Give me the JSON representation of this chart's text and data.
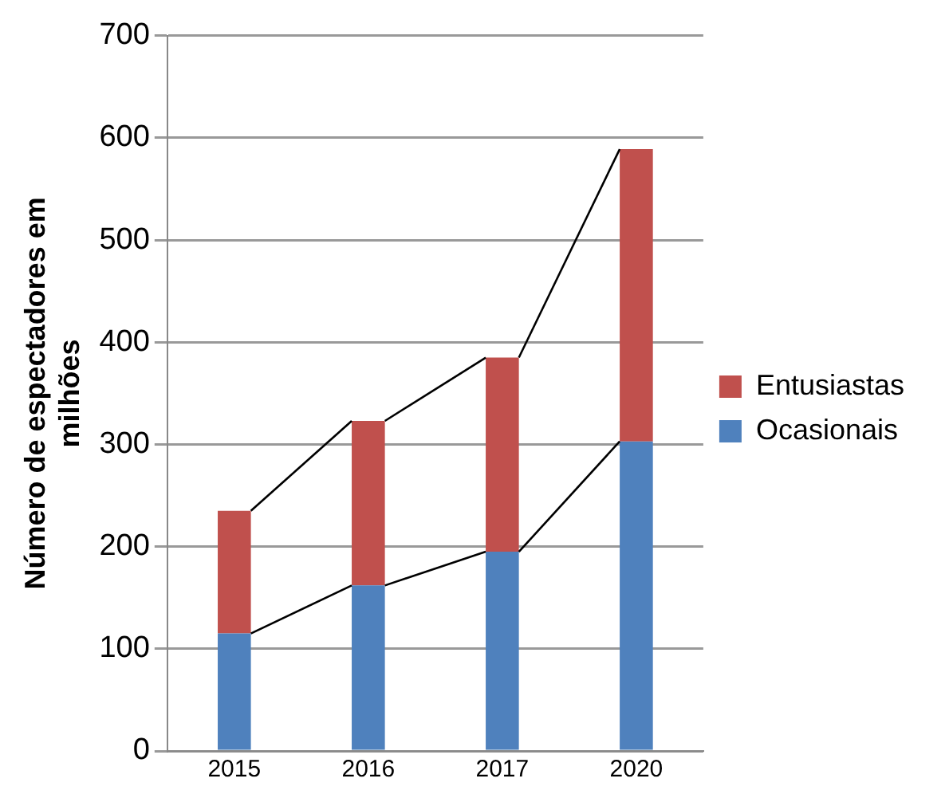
{
  "chart_data": {
    "type": "bar",
    "stacked": true,
    "ylabel": "Número de espectadores em milhões",
    "categories": [
      "2015",
      "2016",
      "2017",
      "2020"
    ],
    "series": [
      {
        "name": "Ocasionais",
        "color": "#4f81bd",
        "values": [
          115,
          162,
          195,
          303
        ]
      },
      {
        "name": "Entusiastas",
        "color": "#c0504d",
        "values": [
          120,
          161,
          190,
          286
        ]
      }
    ],
    "ylim": [
      0,
      700
    ],
    "yticks": [
      0,
      100,
      200,
      300,
      400,
      500,
      600,
      700
    ],
    "grid": "y",
    "legend": "right"
  }
}
